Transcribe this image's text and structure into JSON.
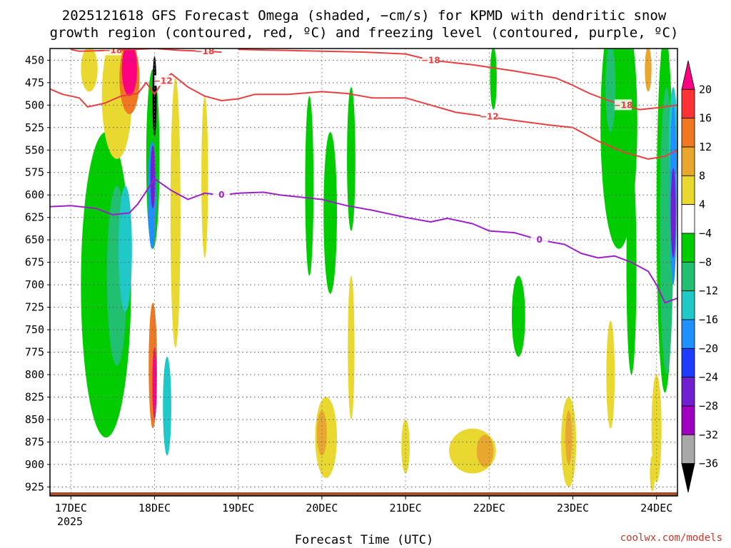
{
  "chart_data": {
    "type": "heatmap",
    "title_line1": "2025121618 GFS Forecast Omega (shaded, −cm/s) for KPMD with dendritic snow",
    "title_line2": "growth region (contoured, red, ºC) and freezing level (contoured, purple, ºC)",
    "xlabel": "Forecast Time (UTC)",
    "ylabel": "",
    "credit": "coolwx.com/models",
    "y_ticks": [
      450,
      475,
      500,
      525,
      550,
      575,
      600,
      625,
      650,
      675,
      700,
      725,
      750,
      775,
      800,
      825,
      850,
      875,
      900,
      925
    ],
    "x_ticks": [
      "17DEC",
      "18DEC",
      "19DEC",
      "20DEC",
      "21DEC",
      "22DEC",
      "23DEC",
      "24DEC"
    ],
    "x_tick_days": [
      0,
      1,
      2,
      3,
      4,
      5,
      6,
      7
    ],
    "x_sublabel": "2025",
    "x_range_days": [
      -0.25,
      7.25
    ],
    "pressure_range": [
      437,
      935
    ],
    "colorbar": {
      "labels": [
        "20",
        "16",
        "12",
        "8",
        "4",
        "−4",
        "−8",
        "−12",
        "−16",
        "−20",
        "−24",
        "−28",
        "−32",
        "−36"
      ],
      "colors": [
        "#ff0080",
        "#ff3333",
        "#f07820",
        "#e8a830",
        "#e8d830",
        "#ffffff",
        "#00cc00",
        "#20c070",
        "#20c8c8",
        "#1e90ff",
        "#1e3cff",
        "#7020d0",
        "#a000c0",
        "#a8a8a8",
        "#000000"
      ]
    },
    "contours": [
      {
        "name": "dgz-minus18-left",
        "label": "−18",
        "color": "#e84040",
        "points": [
          [
            0.0,
            438
          ],
          [
            0.1,
            440
          ],
          [
            0.5,
            439
          ],
          [
            1.0,
            437
          ],
          [
            1.3,
            439
          ],
          [
            1.6,
            440
          ],
          [
            1.8,
            441
          ]
        ]
      },
      {
        "name": "dgz-minus18-right",
        "label": "−18",
        "color": "#e84040",
        "points": [
          [
            2.0,
            438
          ],
          [
            3.0,
            440
          ],
          [
            3.5,
            441
          ],
          [
            4.0,
            443
          ],
          [
            4.3,
            450
          ],
          [
            4.8,
            455
          ],
          [
            5.3,
            462
          ],
          [
            5.8,
            470
          ],
          [
            6.0,
            478
          ],
          [
            6.2,
            487
          ],
          [
            6.4,
            494
          ],
          [
            6.6,
            500
          ],
          [
            6.8,
            505
          ],
          [
            7.0,
            503
          ],
          [
            7.1,
            502
          ],
          [
            7.25,
            500
          ]
        ]
      },
      {
        "name": "dgz-minus12",
        "label": "−12",
        "color": "#e84040",
        "points": [
          [
            -0.25,
            482
          ],
          [
            -0.1,
            488
          ],
          [
            0.1,
            492
          ],
          [
            0.2,
            502
          ],
          [
            0.4,
            498
          ],
          [
            0.6,
            490
          ],
          [
            0.8,
            487
          ],
          [
            0.9,
            475
          ],
          [
            1.0,
            488
          ],
          [
            1.1,
            473
          ],
          [
            1.2,
            465
          ],
          [
            1.4,
            480
          ],
          [
            1.6,
            490
          ],
          [
            1.8,
            495
          ],
          [
            2.0,
            493
          ],
          [
            2.2,
            488
          ],
          [
            2.6,
            488
          ],
          [
            3.0,
            485
          ],
          [
            3.3,
            487
          ],
          [
            3.6,
            492
          ],
          [
            4.0,
            492
          ],
          [
            4.3,
            500
          ],
          [
            4.6,
            508
          ],
          [
            5.0,
            513
          ],
          [
            5.3,
            517
          ],
          [
            5.7,
            522
          ],
          [
            6.0,
            525
          ],
          [
            6.2,
            535
          ],
          [
            6.3,
            540
          ],
          [
            6.6,
            552
          ],
          [
            6.9,
            560
          ],
          [
            7.1,
            557
          ],
          [
            7.25,
            550
          ]
        ]
      },
      {
        "name": "freezing-level-0",
        "label": "0",
        "color": "#9b20c8",
        "points": [
          [
            -0.25,
            613
          ],
          [
            0.0,
            612
          ],
          [
            0.3,
            615
          ],
          [
            0.5,
            622
          ],
          [
            0.7,
            620
          ],
          [
            0.8,
            610
          ],
          [
            1.0,
            582
          ],
          [
            1.2,
            595
          ],
          [
            1.4,
            605
          ],
          [
            1.6,
            598
          ],
          [
            1.8,
            600
          ],
          [
            2.0,
            598
          ],
          [
            2.3,
            597
          ],
          [
            2.5,
            600
          ],
          [
            2.8,
            603
          ],
          [
            3.0,
            605
          ],
          [
            3.3,
            612
          ],
          [
            3.6,
            617
          ],
          [
            4.0,
            625
          ],
          [
            4.3,
            630
          ],
          [
            4.5,
            626
          ],
          [
            4.8,
            632
          ],
          [
            5.0,
            640
          ],
          [
            5.3,
            642
          ],
          [
            5.6,
            650
          ],
          [
            5.9,
            655
          ],
          [
            6.1,
            665
          ],
          [
            6.3,
            670
          ],
          [
            6.5,
            668
          ],
          [
            6.7,
            675
          ],
          [
            6.9,
            685
          ],
          [
            7.0,
            700
          ],
          [
            7.1,
            720
          ],
          [
            7.25,
            715
          ]
        ]
      }
    ],
    "omega_blobs": [
      {
        "name": "ascent-green-17dec-low",
        "fill": "#00cc00",
        "day": 0.42,
        "p": 700,
        "dd": 0.3,
        "dp": 170
      },
      {
        "name": "ascent-cyan-17dec",
        "fill": "#20c070",
        "day": 0.55,
        "p": 690,
        "dd": 0.12,
        "dp": 100
      },
      {
        "name": "ascent-cyan-core-17dec",
        "fill": "#20c8c8",
        "day": 0.65,
        "p": 660,
        "dd": 0.08,
        "dp": 70
      },
      {
        "name": "descent-yellow-17dec-upper",
        "fill": "#e8d830",
        "day": 0.55,
        "p": 490,
        "dd": 0.18,
        "dp": 70
      },
      {
        "name": "descent-yellow-17dec-top",
        "fill": "#e8d830",
        "day": 0.22,
        "p": 460,
        "dd": 0.1,
        "dp": 25
      },
      {
        "name": "descent-orange-17dec",
        "fill": "#f07820",
        "day": 0.7,
        "p": 470,
        "dd": 0.12,
        "dp": 40
      },
      {
        "name": "descent-magenta-17dec",
        "fill": "#ff0080",
        "day": 0.7,
        "p": 460,
        "dd": 0.09,
        "dp": 30
      },
      {
        "name": "ascent-green-18dec-upper",
        "fill": "#00cc00",
        "day": 0.98,
        "p": 560,
        "dd": 0.08,
        "dp": 100
      },
      {
        "name": "ascent-blue-18dec",
        "fill": "#1e90ff",
        "day": 0.97,
        "p": 600,
        "dd": 0.05,
        "dp": 60
      },
      {
        "name": "ascent-purple-18dec",
        "fill": "#7020d0",
        "day": 0.98,
        "p": 580,
        "dd": 0.03,
        "dp": 35
      },
      {
        "name": "ascent-black-18dec",
        "fill": "#000000",
        "day": 1.0,
        "p": 490,
        "dd": 0.025,
        "dp": 45
      },
      {
        "name": "descent-orange-18dec-low",
        "fill": "#f07820",
        "day": 0.98,
        "p": 790,
        "dd": 0.05,
        "dp": 70
      },
      {
        "name": "descent-magenta-18dec-low",
        "fill": "#ff0080",
        "day": 1.0,
        "p": 810,
        "dd": 0.025,
        "dp": 40
      },
      {
        "name": "ascent-cyan-18dec-low",
        "fill": "#20c8c8",
        "day": 1.15,
        "p": 835,
        "dd": 0.05,
        "dp": 55
      },
      {
        "name": "descent-yellow-18dec-mid",
        "fill": "#e8d830",
        "day": 1.25,
        "p": 620,
        "dd": 0.06,
        "dp": 150
      },
      {
        "name": "descent-yellow-18dec-right",
        "fill": "#e8d830",
        "day": 1.6,
        "p": 580,
        "dd": 0.04,
        "dp": 90
      },
      {
        "name": "ascent-green-19dec-mid",
        "fill": "#00cc00",
        "day": 2.85,
        "p": 590,
        "dd": 0.05,
        "dp": 100
      },
      {
        "name": "ascent-green-20dec-a",
        "fill": "#00cc00",
        "day": 3.1,
        "p": 620,
        "dd": 0.08,
        "dp": 90
      },
      {
        "name": "ascent-green-20dec-b",
        "fill": "#00cc00",
        "day": 3.35,
        "p": 560,
        "dd": 0.05,
        "dp": 80
      },
      {
        "name": "descent-yellow-20dec",
        "fill": "#e8d830",
        "day": 3.05,
        "p": 870,
        "dd": 0.13,
        "dp": 45
      },
      {
        "name": "descent-orange-20dec",
        "fill": "#e8a830",
        "day": 3.0,
        "p": 865,
        "dd": 0.06,
        "dp": 25
      },
      {
        "name": "descent-yellow-20dec-mid",
        "fill": "#e8d830",
        "day": 3.35,
        "p": 770,
        "dd": 0.04,
        "dp": 80
      },
      {
        "name": "descent-yellow-21dec",
        "fill": "#e8d830",
        "day": 4.0,
        "p": 880,
        "dd": 0.05,
        "dp": 30
      },
      {
        "name": "descent-yellow-22dec",
        "fill": "#e8d830",
        "day": 4.8,
        "p": 885,
        "dd": 0.28,
        "dp": 25
      },
      {
        "name": "descent-orange-22dec",
        "fill": "#e8a830",
        "day": 4.95,
        "p": 885,
        "dd": 0.1,
        "dp": 18
      },
      {
        "name": "ascent-green-22dec-top",
        "fill": "#00cc00",
        "day": 5.05,
        "p": 470,
        "dd": 0.04,
        "dp": 35
      },
      {
        "name": "ascent-green-22dec-low",
        "fill": "#00cc00",
        "day": 5.35,
        "p": 735,
        "dd": 0.08,
        "dp": 45
      },
      {
        "name": "descent-yellow-23dec",
        "fill": "#e8d830",
        "day": 5.95,
        "p": 875,
        "dd": 0.09,
        "dp": 50
      },
      {
        "name": "descent-orange-23dec",
        "fill": "#e8a830",
        "day": 5.95,
        "p": 870,
        "dd": 0.04,
        "dp": 30
      },
      {
        "name": "ascent-green-23dec-upper",
        "fill": "#00cc00",
        "day": 6.55,
        "p": 520,
        "dd": 0.22,
        "dp": 140
      },
      {
        "name": "ascent-cyan-23dec",
        "fill": "#20c070",
        "day": 6.45,
        "p": 480,
        "dd": 0.06,
        "dp": 50
      },
      {
        "name": "descent-yellow-23dec-low",
        "fill": "#e8d830",
        "day": 6.45,
        "p": 800,
        "dd": 0.05,
        "dp": 60
      },
      {
        "name": "ascent-green-24dec-low",
        "fill": "#00cc00",
        "day": 6.7,
        "p": 680,
        "dd": 0.06,
        "dp": 120
      },
      {
        "name": "ascent-green-24dec-right",
        "fill": "#00cc00",
        "day": 7.1,
        "p": 620,
        "dd": 0.1,
        "dp": 200
      },
      {
        "name": "ascent-cyan-24dec",
        "fill": "#20c070",
        "day": 7.12,
        "p": 640,
        "dd": 0.08,
        "dp": 160
      },
      {
        "name": "ascent-cyan-24dec-top",
        "fill": "#20c8c8",
        "day": 7.2,
        "p": 540,
        "dd": 0.05,
        "dp": 60
      },
      {
        "name": "ascent-blue-24dec",
        "fill": "#1e90ff",
        "day": 7.2,
        "p": 600,
        "dd": 0.04,
        "dp": 100
      },
      {
        "name": "ascent-purple-24dec",
        "fill": "#7020d0",
        "day": 7.2,
        "p": 620,
        "dd": 0.03,
        "dp": 50
      },
      {
        "name": "descent-orange-24dec-top",
        "fill": "#e8a830",
        "day": 6.9,
        "p": 460,
        "dd": 0.04,
        "dp": 25
      },
      {
        "name": "descent-yellow-24dec-low",
        "fill": "#e8d830",
        "day": 7.0,
        "p": 860,
        "dd": 0.06,
        "dp": 60
      },
      {
        "name": "descent-yellow-24dec-bottom",
        "fill": "#e8d830",
        "day": 6.95,
        "p": 910,
        "dd": 0.03,
        "dp": 20
      }
    ],
    "surface": {
      "name": "terrain-surface",
      "color": "#a0522d",
      "pressure": 931
    }
  }
}
